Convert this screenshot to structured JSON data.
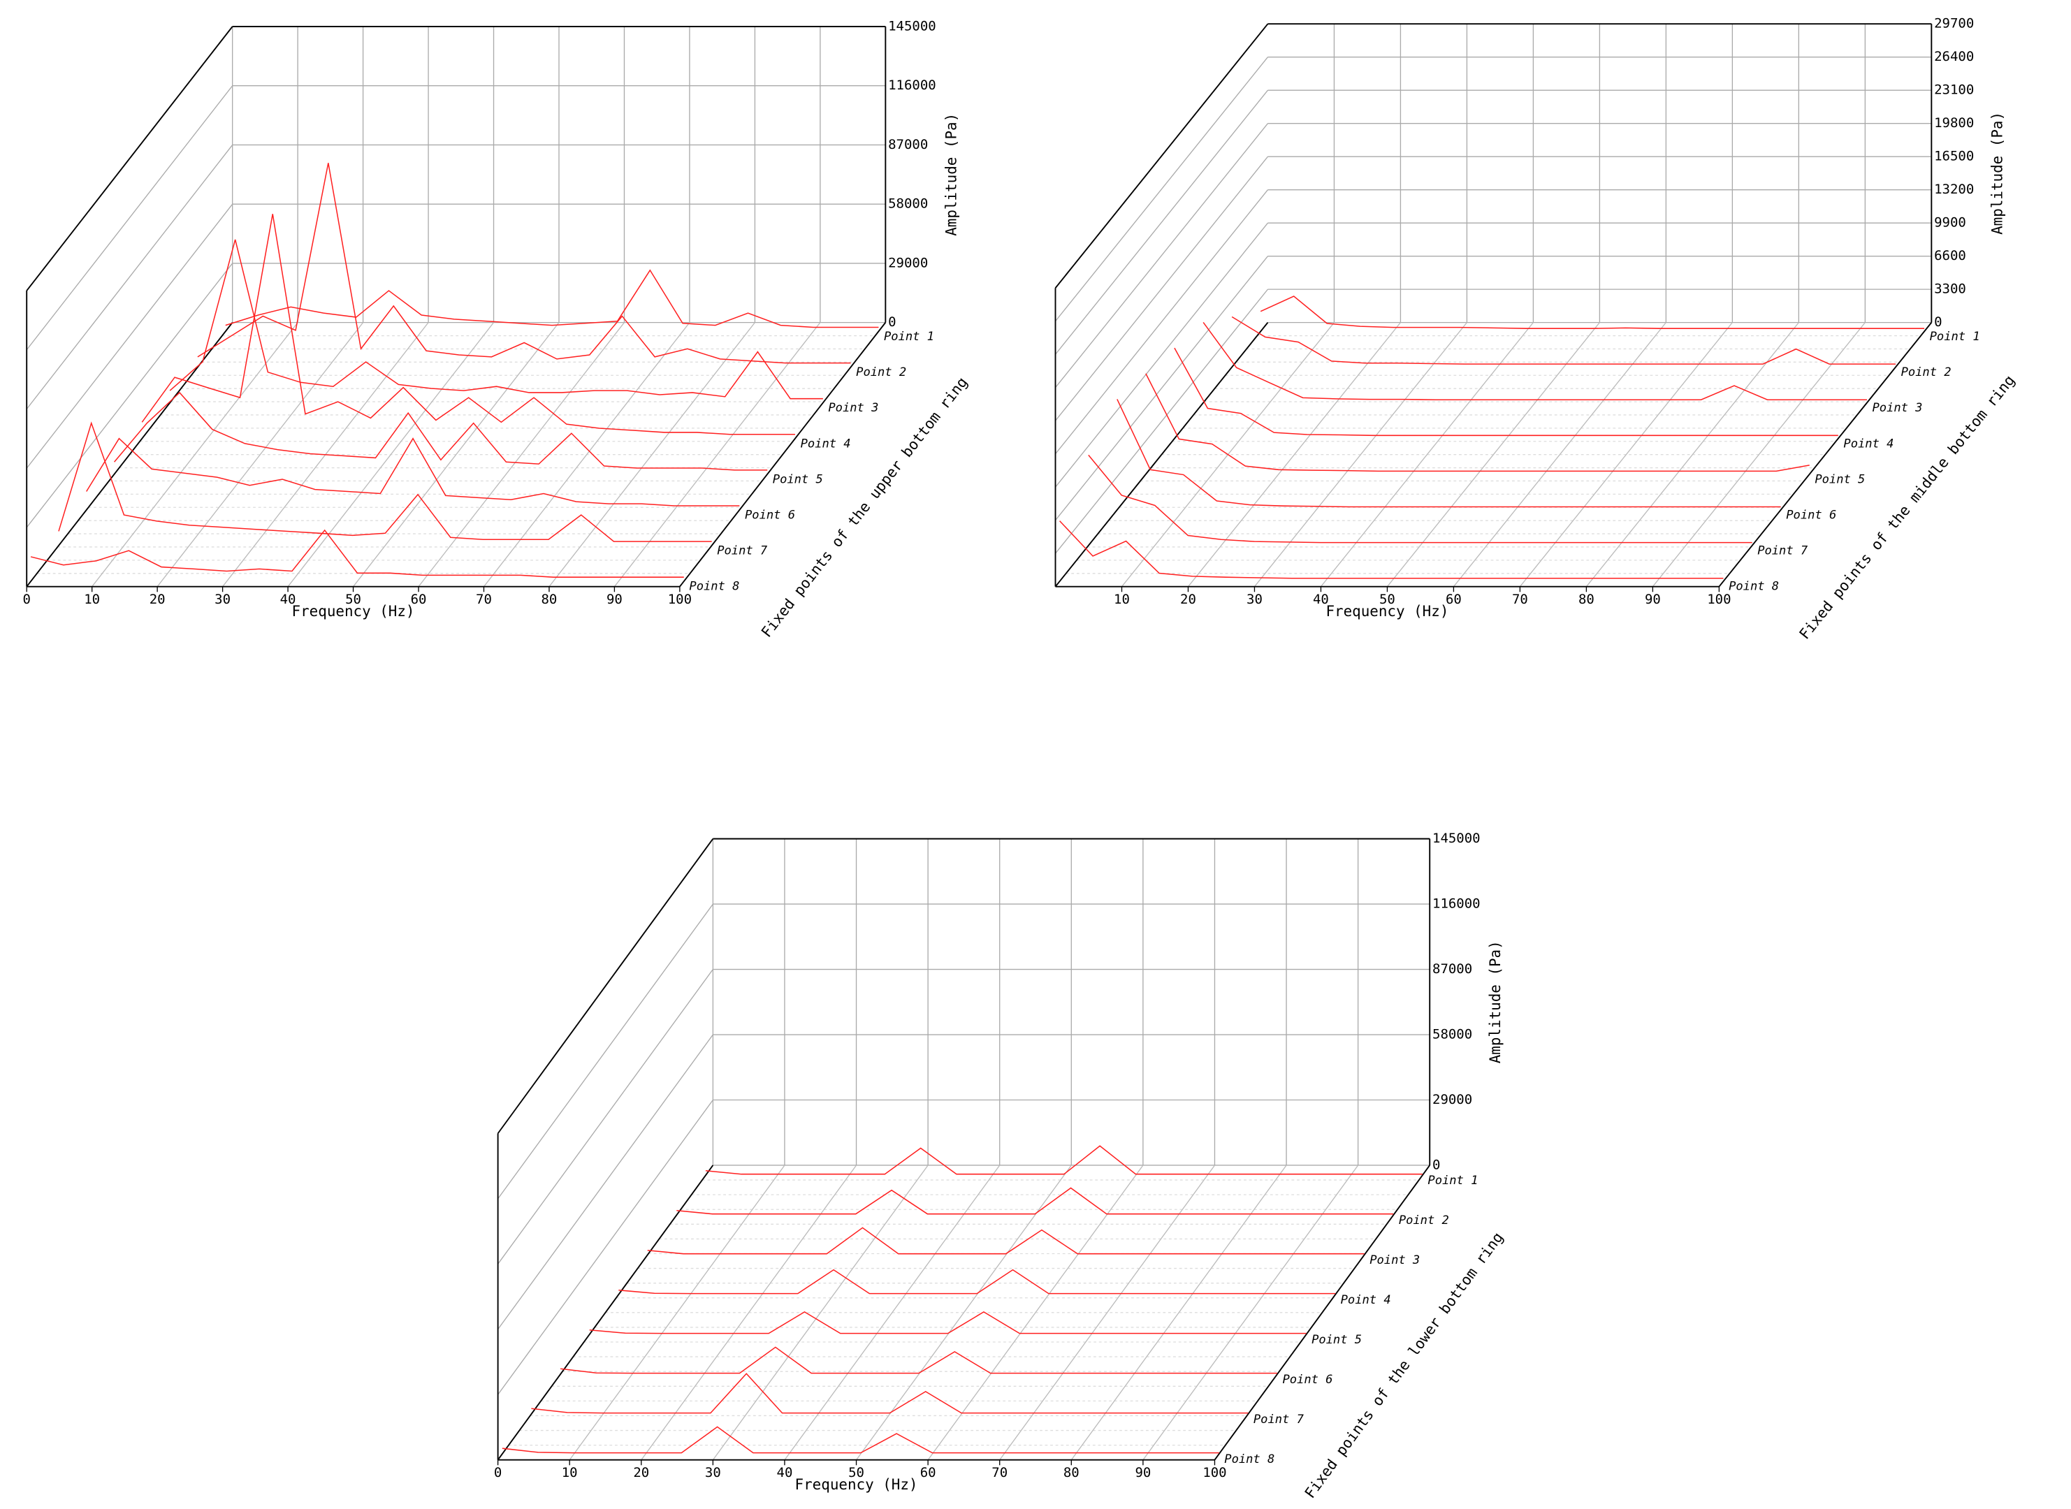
{
  "chart_data": [
    {
      "type": "waterfall",
      "x_label": "Frequency (Hz)",
      "y_label": "Amplitude (Pa)",
      "depth_label": "Fixed points of the upper bottom ring",
      "x": [
        0,
        5,
        10,
        15,
        20,
        25,
        30,
        35,
        40,
        45,
        50,
        55,
        60,
        65,
        70,
        75,
        80,
        85,
        90,
        95,
        100
      ],
      "xlim": [
        0,
        100
      ],
      "xticks": [
        0,
        10,
        20,
        30,
        40,
        50,
        60,
        70,
        80,
        90,
        100
      ],
      "ylim": [
        0,
        145000
      ],
      "yticks": [
        0,
        29000,
        58000,
        87000,
        116000,
        145000
      ],
      "grid": true,
      "series": [
        {
          "name": "Point 1",
          "color": "#ff2020",
          "values": [
            3000,
            8000,
            12000,
            9000,
            7000,
            20000,
            8000,
            6000,
            5000,
            4000,
            3000,
            4000,
            5000,
            30000,
            4000,
            3000,
            9000,
            3000,
            2000,
            2000,
            2000
          ]
        },
        {
          "name": "Point 2",
          "color": "#ff2020",
          "values": [
            5000,
            15000,
            25000,
            18000,
            100000,
            9000,
            30000,
            8000,
            6000,
            5000,
            12000,
            4000,
            6000,
            25000,
            5000,
            9000,
            4000,
            3000,
            2000,
            2000,
            2000
          ]
        },
        {
          "name": "Point 3",
          "color": "#ff2020",
          "values": [
            6000,
            20000,
            80000,
            15000,
            10000,
            8000,
            20000,
            9000,
            7000,
            6000,
            8000,
            5000,
            5000,
            6000,
            6000,
            4000,
            5000,
            3000,
            25000,
            2000,
            2000
          ]
        },
        {
          "name": "Point 4",
          "color": "#ff2020",
          "values": [
            8000,
            30000,
            25000,
            20000,
            110000,
            12000,
            18000,
            10000,
            25000,
            9000,
            20000,
            8000,
            20000,
            7000,
            5000,
            4000,
            3000,
            3000,
            2000,
            2000,
            2000
          ]
        },
        {
          "name": "Point 5",
          "color": "#ff2020",
          "values": [
            6000,
            25000,
            40000,
            22000,
            15000,
            12000,
            10000,
            9000,
            8000,
            30000,
            7000,
            25000,
            6000,
            5000,
            20000,
            4000,
            3000,
            3000,
            3000,
            2000,
            2000
          ]
        },
        {
          "name": "Point 6",
          "color": "#ff2020",
          "values": [
            9000,
            35000,
            20000,
            18000,
            16000,
            12000,
            15000,
            10000,
            9000,
            8000,
            35000,
            7000,
            6000,
            5000,
            8000,
            4000,
            3000,
            3000,
            2000,
            2000,
            2000
          ]
        },
        {
          "name": "Point 7",
          "color": "#ff2020",
          "values": [
            7000,
            60000,
            15000,
            12000,
            10000,
            9000,
            8000,
            7000,
            6000,
            5000,
            6000,
            25000,
            4000,
            3000,
            3000,
            3000,
            15000,
            2000,
            2000,
            2000,
            2000
          ]
        },
        {
          "name": "Point 8",
          "color": "#ff2020",
          "values": [
            12000,
            8000,
            10000,
            15000,
            7000,
            6000,
            5000,
            6000,
            5000,
            25000,
            4000,
            4000,
            3000,
            3000,
            3000,
            3000,
            2000,
            2000,
            2000,
            2000,
            2000
          ]
        }
      ]
    },
    {
      "type": "waterfall",
      "x_label": "Frequency (Hz)",
      "y_label": "Amplitude (Pa)",
      "depth_label": "Fixed points of the middle bottom ring",
      "x": [
        0,
        5,
        10,
        15,
        20,
        25,
        30,
        35,
        40,
        45,
        50,
        55,
        60,
        65,
        70,
        75,
        80,
        85,
        90,
        95,
        100
      ],
      "xlim": [
        0,
        100
      ],
      "xticks": [
        10,
        20,
        30,
        40,
        50,
        60,
        70,
        80,
        90,
        100
      ],
      "ylim": [
        0,
        29700
      ],
      "yticks": [
        0,
        3300,
        6600,
        9900,
        13200,
        16500,
        19800,
        23100,
        26400,
        29700
      ],
      "grid": true,
      "series": [
        {
          "name": "Point 1",
          "color": "#ff2020",
          "values": [
            2000,
            3500,
            800,
            500,
            400,
            400,
            400,
            350,
            300,
            300,
            300,
            350,
            300,
            300,
            300,
            300,
            300,
            300,
            300,
            300,
            300
          ]
        },
        {
          "name": "Point 2",
          "color": "#ff2020",
          "values": [
            5000,
            3000,
            2500,
            600,
            400,
            400,
            350,
            300,
            300,
            300,
            300,
            300,
            300,
            300,
            300,
            300,
            300,
            1800,
            300,
            300,
            300
          ]
        },
        {
          "name": "Point 3",
          "color": "#ff2020",
          "values": [
            8000,
            3500,
            2000,
            500,
            400,
            350,
            350,
            300,
            300,
            300,
            300,
            300,
            300,
            300,
            300,
            300,
            1700,
            300,
            300,
            300,
            300
          ]
        },
        {
          "name": "Point 4",
          "color": "#ff2020",
          "values": [
            9000,
            3000,
            2500,
            600,
            400,
            350,
            300,
            300,
            300,
            300,
            300,
            300,
            300,
            300,
            300,
            300,
            300,
            300,
            300,
            300,
            300
          ]
        },
        {
          "name": "Point 5",
          "color": "#ff2020",
          "values": [
            10000,
            3500,
            3000,
            800,
            450,
            400,
            350,
            300,
            300,
            300,
            300,
            300,
            300,
            300,
            300,
            300,
            300,
            300,
            300,
            300,
            900
          ]
        },
        {
          "name": "Point 6",
          "color": "#ff2020",
          "values": [
            11000,
            4000,
            3500,
            900,
            500,
            400,
            350,
            300,
            300,
            300,
            300,
            300,
            300,
            300,
            300,
            300,
            300,
            300,
            300,
            300,
            300
          ]
        },
        {
          "name": "Point 7",
          "color": "#ff2020",
          "values": [
            9000,
            5000,
            4000,
            1000,
            600,
            400,
            350,
            300,
            300,
            300,
            300,
            300,
            300,
            300,
            300,
            300,
            300,
            300,
            300,
            300,
            300
          ]
        },
        {
          "name": "Point 8",
          "color": "#ff2020",
          "values": [
            6000,
            2500,
            4000,
            800,
            500,
            400,
            350,
            300,
            300,
            300,
            300,
            300,
            300,
            300,
            300,
            300,
            300,
            300,
            300,
            300,
            300
          ]
        }
      ]
    },
    {
      "type": "waterfall",
      "x_label": "Frequency (Hz)",
      "y_label": "Amplitude (Pa)",
      "depth_label": "Fixed points of the lower bottom ring",
      "x": [
        0,
        5,
        10,
        15,
        20,
        25,
        30,
        35,
        40,
        45,
        50,
        55,
        60,
        65,
        70,
        75,
        80,
        85,
        90,
        95,
        100
      ],
      "xlim": [
        0,
        100
      ],
      "xticks": [
        0,
        10,
        20,
        30,
        40,
        50,
        60,
        70,
        80,
        90,
        100
      ],
      "ylim": [
        0,
        145000
      ],
      "yticks": [
        0,
        29000,
        58000,
        87000,
        116000,
        145000
      ],
      "grid": true,
      "series": [
        {
          "name": "Point 1",
          "color": "#ff2020",
          "values": [
            2000,
            500,
            500,
            500,
            500,
            500,
            12000,
            500,
            500,
            500,
            500,
            13000,
            500,
            500,
            500,
            500,
            500,
            500,
            500,
            500,
            500
          ]
        },
        {
          "name": "Point 2",
          "color": "#ff2020",
          "values": [
            2000,
            500,
            500,
            500,
            500,
            500,
            11000,
            500,
            500,
            500,
            500,
            12000,
            500,
            500,
            500,
            500,
            500,
            500,
            500,
            500,
            500
          ]
        },
        {
          "name": "Point 3",
          "color": "#ff2020",
          "values": [
            2000,
            500,
            500,
            500,
            500,
            500,
            12000,
            500,
            500,
            500,
            500,
            11000,
            500,
            500,
            500,
            500,
            500,
            500,
            500,
            500,
            500
          ]
        },
        {
          "name": "Point 4",
          "color": "#ff2020",
          "values": [
            2000,
            600,
            500,
            500,
            500,
            500,
            11000,
            500,
            500,
            500,
            500,
            11000,
            500,
            500,
            500,
            500,
            500,
            500,
            500,
            500,
            500
          ]
        },
        {
          "name": "Point 5",
          "color": "#ff2020",
          "values": [
            2000,
            600,
            500,
            500,
            500,
            500,
            10000,
            500,
            500,
            500,
            500,
            10000,
            500,
            500,
            500,
            500,
            500,
            500,
            500,
            500,
            500
          ]
        },
        {
          "name": "Point 6",
          "color": "#ff2020",
          "values": [
            2500,
            600,
            500,
            500,
            500,
            500,
            12000,
            500,
            500,
            500,
            500,
            10000,
            500,
            500,
            500,
            500,
            500,
            500,
            500,
            500,
            500
          ]
        },
        {
          "name": "Point 7",
          "color": "#ff2020",
          "values": [
            2500,
            700,
            500,
            500,
            500,
            500,
            18000,
            500,
            500,
            500,
            500,
            10000,
            500,
            500,
            500,
            500,
            500,
            500,
            500,
            500,
            500
          ]
        },
        {
          "name": "Point 8",
          "color": "#ff2020",
          "values": [
            2500,
            700,
            500,
            500,
            500,
            500,
            12000,
            500,
            500,
            500,
            500,
            9000,
            500,
            500,
            500,
            500,
            500,
            500,
            500,
            500,
            500
          ]
        }
      ]
    }
  ]
}
